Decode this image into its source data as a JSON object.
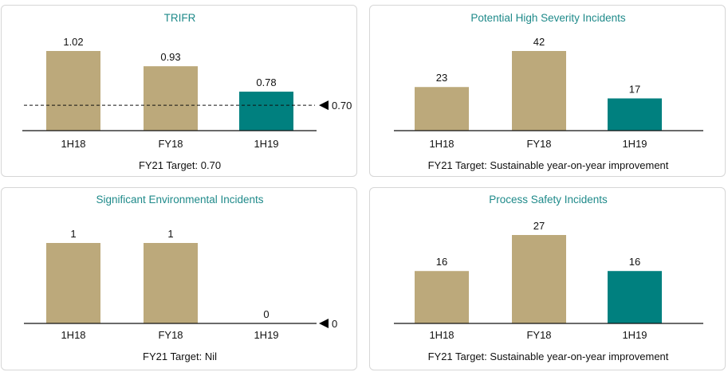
{
  "colors": {
    "past": "#bca97b",
    "current": "#00807f",
    "title": "#1f8a8a",
    "axis": "#111111"
  },
  "chart_data": [
    {
      "type": "bar",
      "title": "TRIFR",
      "categories": [
        "1H18",
        "FY18",
        "1H19"
      ],
      "values": [
        1.02,
        0.93,
        0.78
      ],
      "value_labels": [
        "1.02",
        "0.93",
        "0.78"
      ],
      "reference_line": {
        "value": 0.7,
        "label": "0.70"
      },
      "target_text": "FY21 Target: 0.70",
      "ylim": [
        0.55,
        1.02
      ]
    },
    {
      "type": "bar",
      "title": "Potential High Severity Incidents",
      "categories": [
        "1H18",
        "FY18",
        "1H19"
      ],
      "values": [
        23,
        42,
        17
      ],
      "value_labels": [
        "23",
        "42",
        "17"
      ],
      "target_text": "FY21 Target: Sustainable year-on-year improvement",
      "ylim": [
        0,
        42
      ]
    },
    {
      "type": "bar",
      "title": "Significant Environmental Incidents",
      "categories": [
        "1H18",
        "FY18",
        "1H19"
      ],
      "values": [
        1,
        1,
        0
      ],
      "value_labels": [
        "1",
        "1",
        "0"
      ],
      "reference_line": {
        "value": 0,
        "label": "0"
      },
      "target_text": "FY21 Target: Nil",
      "ylim": [
        0,
        1
      ]
    },
    {
      "type": "bar",
      "title": "Process Safety Incidents",
      "categories": [
        "1H18",
        "FY18",
        "1H19"
      ],
      "values": [
        16,
        27,
        16
      ],
      "value_labels": [
        "16",
        "27",
        "16"
      ],
      "target_text": "FY21 Target: Sustainable year-on-year improvement",
      "ylim": [
        0,
        27
      ]
    }
  ]
}
